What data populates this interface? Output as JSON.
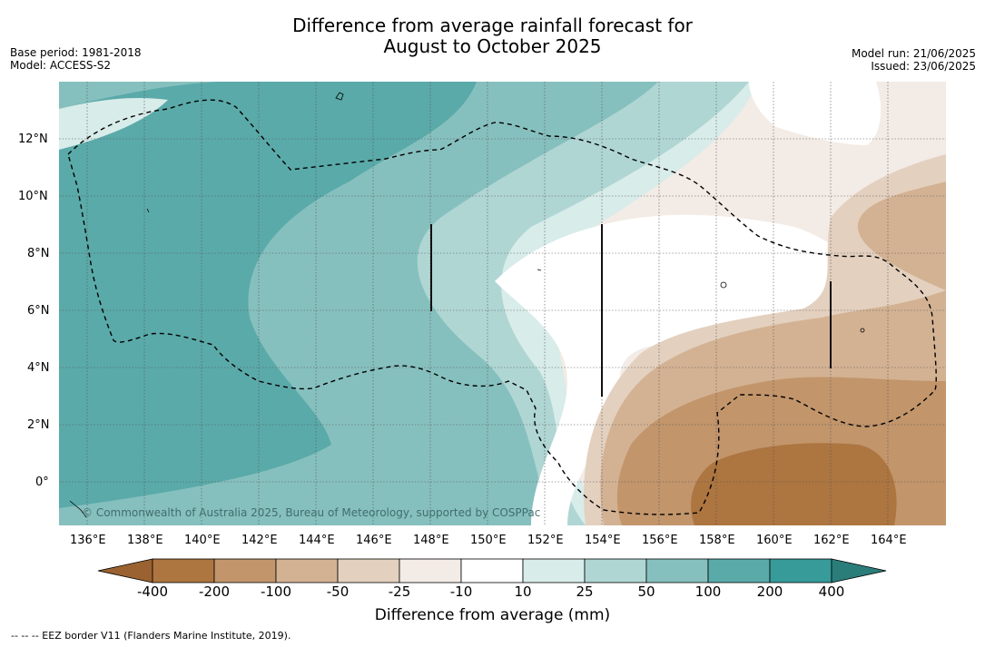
{
  "title": {
    "line1": "Difference from average rainfall forecast for",
    "line2": "August to October 2025"
  },
  "meta_left": {
    "base_period": "Base period: 1981-2018",
    "model": "Model: ACCESS-S2"
  },
  "meta_right": {
    "model_run": "Model run: 21/06/2025",
    "issued": "Issued: 23/06/2025"
  },
  "copyright": "© Commonwealth of Australia 2025, Bureau of Meteorology, supported by COSPPac",
  "x_ticks": [
    "136°E",
    "138°E",
    "140°E",
    "142°E",
    "144°E",
    "146°E",
    "148°E",
    "150°E",
    "152°E",
    "154°E",
    "156°E",
    "158°E",
    "160°E",
    "162°E",
    "164°E"
  ],
  "y_ticks": [
    "12°N",
    "10°N",
    "8°N",
    "6°N",
    "4°N",
    "2°N",
    "0°"
  ],
  "colorbar": {
    "title": "Difference from average (mm)",
    "labels": [
      "-400",
      "-200",
      "-100",
      "-50",
      "-25",
      "-10",
      "10",
      "25",
      "50",
      "100",
      "200",
      "400"
    ],
    "colors": [
      "#9a6230",
      "#ad7540",
      "#c2956b",
      "#d3b293",
      "#e3d0bf",
      "#f3ebe5",
      "#ffffff",
      "#d8ecea",
      "#b0d6d4",
      "#86c0be",
      "#5aaaa9",
      "#369b99",
      "#2b7d7a"
    ]
  },
  "footer": "--  --  -- EEZ border V11 (Flanders Marine Institute, 2019)."
}
